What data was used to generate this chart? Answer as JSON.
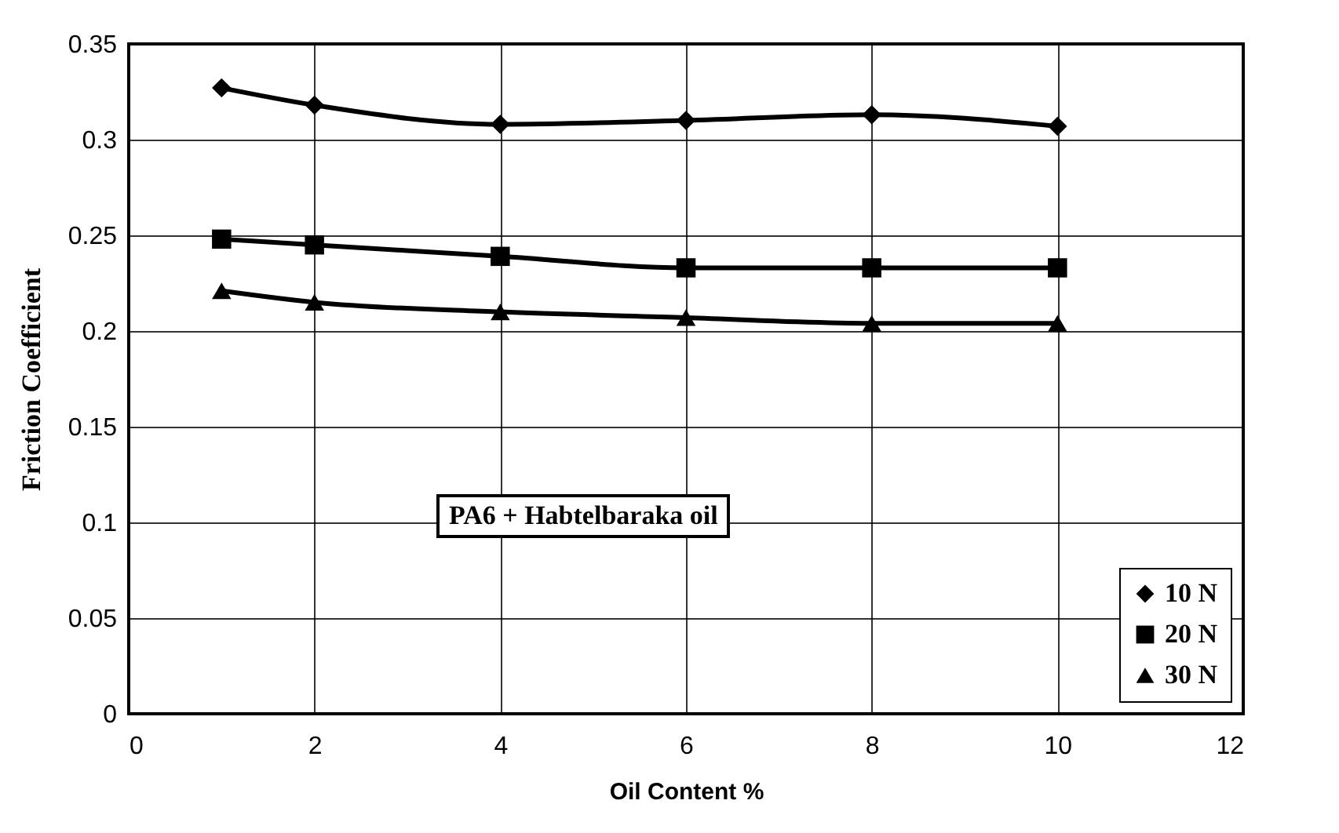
{
  "chart_data": {
    "type": "line",
    "xlabel": "Oil Content %",
    "ylabel": "Friction Coefficient",
    "x": [
      1,
      2,
      4,
      6,
      8,
      10
    ],
    "series": [
      {
        "name": "10 N",
        "color": "#000000",
        "marker": "diamond",
        "values": [
          0.327,
          0.318,
          0.308,
          0.31,
          0.313,
          0.307
        ]
      },
      {
        "name": "20 N",
        "color": "#000000",
        "marker": "square",
        "values": [
          0.248,
          0.245,
          0.239,
          0.233,
          0.233,
          0.233
        ]
      },
      {
        "name": "30 N",
        "color": "#000000",
        "marker": "triangle",
        "values": [
          0.221,
          0.215,
          0.21,
          0.207,
          0.204,
          0.204
        ]
      }
    ],
    "xlim": [
      0,
      12
    ],
    "xticks": [
      0,
      2,
      4,
      6,
      8,
      10,
      12
    ],
    "ylim": [
      0,
      0.35
    ],
    "yticks": [
      0,
      0.05,
      0.1,
      0.15,
      0.2,
      0.25,
      0.3,
      0.35
    ],
    "grid": true,
    "legend": "bottom right",
    "line_style": "solid",
    "annotations": [
      "PA6 + Habtelbaraka oil"
    ]
  }
}
